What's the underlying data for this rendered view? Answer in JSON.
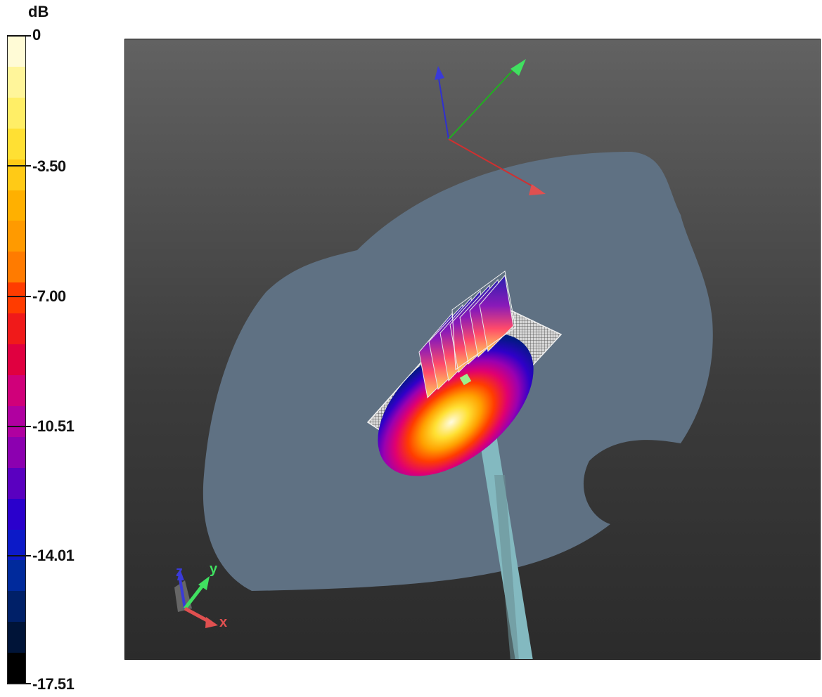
{
  "legend": {
    "unit": "dB",
    "ticks": [
      "0",
      "-3.50",
      "-7.00",
      "-10.51",
      "-14.01",
      "-17.51"
    ],
    "colors": [
      "#fffbd6",
      "#fff59a",
      "#ffee66",
      "#ffe033",
      "#ffca16",
      "#ffb000",
      "#ff9a00",
      "#ff7b00",
      "#ff3c00",
      "#f01a1a",
      "#e00040",
      "#d0007a",
      "#b000a0",
      "#8c00b0",
      "#5a00c0",
      "#2a00cc",
      "#0c1ac8",
      "#002a9c",
      "#002068",
      "#001438",
      "#000000"
    ]
  },
  "viewport": {
    "scene": "3D view of a phantom shell with measured field distribution",
    "orientation_axes": [
      "z",
      "y",
      "x"
    ]
  }
}
